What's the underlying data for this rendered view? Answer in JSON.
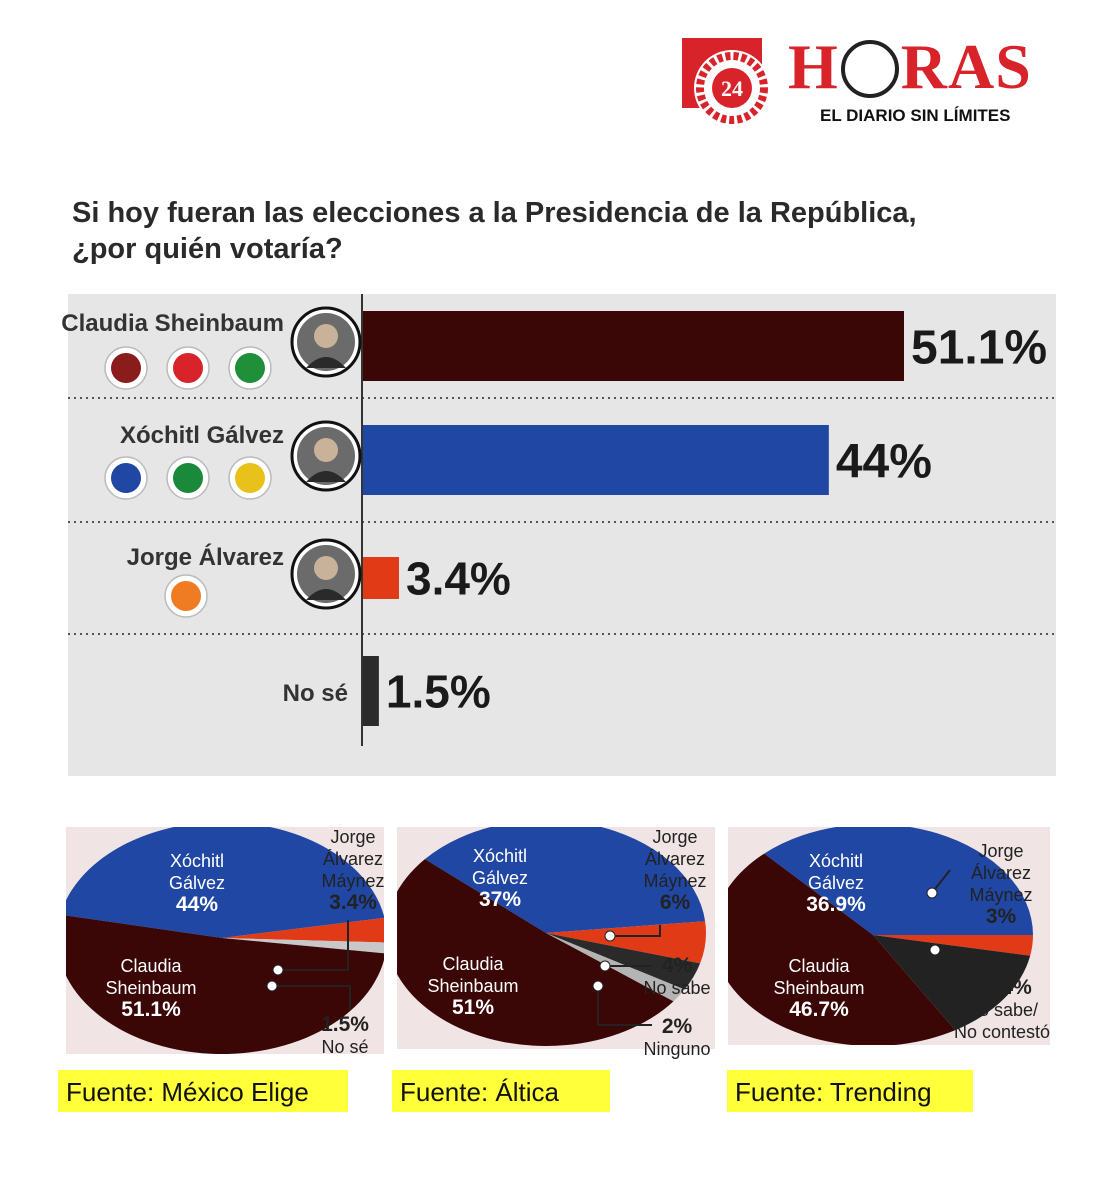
{
  "logo": {
    "badge_number": "24",
    "word_left": "H",
    "word_right": "RAS",
    "tagline": "EL DIARIO SIN LÍMITES"
  },
  "question": {
    "line1": "Si hoy fueran las elecciones a la Presidencia de la República,",
    "line2": "¿por quién votaría?"
  },
  "colors": {
    "sheinbaum": "#3a0606",
    "galvez": "#1f47a3",
    "alvarez": "#e03a17",
    "nose": "#2b2b2b",
    "panel": "#e6e6e6",
    "highlight": "#ffff3a"
  },
  "chart_data": [
    {
      "type": "bar",
      "orientation": "horizontal",
      "categories": [
        "Claudia Sheinbaum",
        "Xóchitl Gálvez",
        "Jorge Álvarez",
        "No sé"
      ],
      "values": [
        51.1,
        44,
        3.4,
        1.5
      ],
      "value_labels": [
        "51.1%",
        "44%",
        "3.4%",
        "1.5%"
      ],
      "party_logos": [
        [
          "morena",
          "PT",
          "verde"
        ],
        [
          "PAN",
          "PRI",
          "PRD"
        ],
        [
          "movimiento-ciudadano"
        ],
        []
      ]
    },
    {
      "type": "pie",
      "source": "Fuente: México Elige",
      "slices": [
        {
          "label_lines": [
            "Xóchitl",
            "Gálvez"
          ],
          "value": 44,
          "value_label": "44%"
        },
        {
          "label_lines": [
            "Jorge",
            "Álvarez",
            "Máynez"
          ],
          "value": 3.4,
          "value_label": "3.4%"
        },
        {
          "label_lines": [
            "No sé"
          ],
          "value": 1.5,
          "value_label": "1.5%"
        },
        {
          "label_lines": [
            "Claudia",
            "Sheinbaum"
          ],
          "value": 51.1,
          "value_label": "51.1%"
        }
      ]
    },
    {
      "type": "pie",
      "source": "Fuente: Áltica",
      "slices": [
        {
          "label_lines": [
            "Xóchitl",
            "Gálvez"
          ],
          "value": 37,
          "value_label": "37%"
        },
        {
          "label_lines": [
            "Jorge",
            "Álvarez",
            "Máynez"
          ],
          "value": 6,
          "value_label": "6%"
        },
        {
          "label_lines": [
            "No sabe"
          ],
          "value": 4,
          "value_label": "4%"
        },
        {
          "label_lines": [
            "Ninguno"
          ],
          "value": 2,
          "value_label": "2%"
        },
        {
          "label_lines": [
            "Claudia",
            "Sheinbaum"
          ],
          "value": 51,
          "value_label": "51%"
        }
      ]
    },
    {
      "type": "pie",
      "source": "Fuente: Trending",
      "slices": [
        {
          "label_lines": [
            "Xóchitl",
            "Gálvez"
          ],
          "value": 36.9,
          "value_label": "36.9%"
        },
        {
          "label_lines": [
            "Jorge",
            "Álvarez",
            "Máynez"
          ],
          "value": 3,
          "value_label": "3%"
        },
        {
          "label_lines": [
            "No sabe/",
            "No contestó"
          ],
          "value": 13.4,
          "value_label": "13.4%"
        },
        {
          "label_lines": [
            "Claudia",
            "Sheinbaum"
          ],
          "value": 46.7,
          "value_label": "46.7%"
        }
      ]
    }
  ]
}
